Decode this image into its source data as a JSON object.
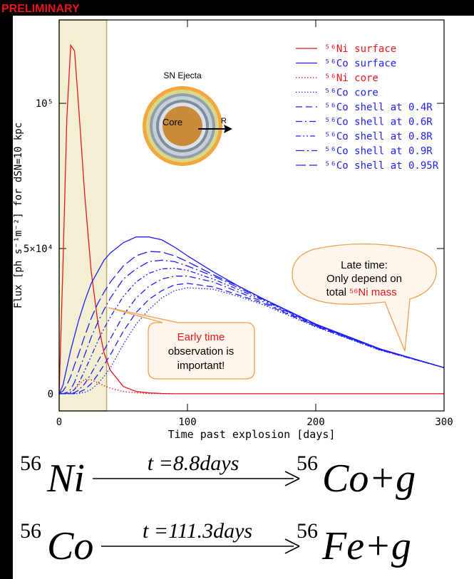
{
  "header": {
    "tag": "PRELIMINARY"
  },
  "chart_data": {
    "type": "line",
    "xlabel": "Time past explosion [days]",
    "ylabel": "Flux [ph s⁻¹m⁻²] for dSN=10 kpc",
    "xlim": [
      0,
      300
    ],
    "ylim": [
      -5900,
      128700
    ],
    "xticks": [
      0,
      100,
      200,
      300
    ],
    "yticks": [
      0,
      {
        "value": 50000,
        "label": "5×10⁴"
      },
      {
        "value": 100000,
        "label": "10⁵"
      }
    ],
    "legend": "top-right",
    "shaded_region": {
      "x": [
        0,
        37
      ],
      "color": "#f2efd3"
    },
    "x": [
      0,
      3,
      6,
      9,
      12,
      15,
      20,
      25,
      30,
      35,
      40,
      50,
      60,
      70,
      80,
      90,
      100,
      120,
      140,
      160,
      200,
      250,
      300
    ],
    "series": [
      {
        "name": "⁵⁶Ni surface",
        "color": "#e8161b",
        "dash": "solid",
        "values": [
          0,
          45000,
          95000,
          120000,
          118000,
          100000,
          68000,
          42000,
          25000,
          14000,
          8000,
          2500,
          800,
          300,
          100,
          0,
          0,
          0,
          0,
          0,
          0,
          0,
          0
        ]
      },
      {
        "name": "⁵⁶Co surface",
        "color": "#1f1fff",
        "dash": "solid",
        "values": [
          0,
          3000,
          9000,
          15000,
          20000,
          25000,
          32000,
          38000,
          42000,
          46000,
          48500,
          52000,
          54000,
          54000,
          53000,
          50500,
          47500,
          42000,
          37000,
          32500,
          24000,
          15500,
          9000
        ]
      },
      {
        "name": "⁵⁶Ni core",
        "color": "#e8161b",
        "dash": "dotted",
        "values": [
          0,
          0,
          200,
          600,
          1500,
          3000,
          5000,
          4800,
          3800,
          2800,
          1900,
          800,
          300,
          100,
          0,
          0,
          0,
          0,
          0,
          0,
          0,
          0,
          0
        ]
      },
      {
        "name": "⁵⁶Co core",
        "color": "#1f1fff",
        "dash": "dotted",
        "values": [
          0,
          0,
          0,
          0,
          0,
          100,
          500,
          1500,
          3500,
          6000,
          9000,
          17000,
          24000,
          29000,
          33000,
          35500,
          36500,
          36000,
          33500,
          30500,
          23000,
          15000,
          9000
        ]
      },
      {
        "name": "⁵⁶Co shell at 0.4R",
        "color": "#1f1fff",
        "dash": "dashed",
        "values": [
          0,
          0,
          0,
          0,
          100,
          400,
          1500,
          3500,
          6500,
          10000,
          13500,
          21500,
          28000,
          32500,
          35500,
          37500,
          38000,
          36800,
          34000,
          31000,
          23200,
          15100,
          9000
        ]
      },
      {
        "name": "⁵⁶Co shell at 0.6R",
        "color": "#1f1fff",
        "dash": "dash-dot",
        "values": [
          0,
          0,
          0,
          100,
          400,
          1200,
          3500,
          7000,
          11000,
          15000,
          19000,
          27000,
          33000,
          37000,
          39500,
          40500,
          40500,
          38500,
          35000,
          31500,
          23400,
          15200,
          9000
        ]
      },
      {
        "name": "⁵⁶Co shell at 0.8R",
        "color": "#1f1fff",
        "dash": "dash-dot-dot",
        "values": [
          0,
          0,
          100,
          500,
          1500,
          3500,
          8000,
          13000,
          18000,
          22500,
          26500,
          33500,
          38500,
          41500,
          43000,
          43200,
          42500,
          39500,
          35800,
          32000,
          23600,
          15300,
          9000
        ]
      },
      {
        "name": "⁵⁶Co shell at 0.9R",
        "color": "#1f1fff",
        "dash": "long-dash-dot",
        "values": [
          0,
          0,
          500,
          1500,
          4000,
          7500,
          13500,
          19500,
          24500,
          29000,
          33000,
          39500,
          43000,
          45500,
          46000,
          45500,
          44000,
          40500,
          36500,
          32300,
          23700,
          15300,
          9000
        ]
      },
      {
        "name": "⁵⁶Co shell at 0.95R",
        "color": "#1f1fff",
        "dash": "long-dash",
        "values": [
          0,
          1000,
          3000,
          6000,
          10000,
          13500,
          20000,
          26000,
          31000,
          35000,
          38500,
          44000,
          47500,
          49000,
          48800,
          47500,
          45500,
          41000,
          37000,
          32500,
          23800,
          15400,
          9000
        ]
      }
    ],
    "diagram": {
      "title": "SN Ejecta",
      "core": "Core",
      "radius": "R"
    },
    "callouts": {
      "early": [
        "Early time",
        "observation is",
        "important!"
      ],
      "late": [
        "Late time:",
        "Only depend on",
        "total",
        "⁵⁶Ni mass"
      ]
    }
  },
  "equations": [
    {
      "mass_in": "56",
      "in": "Ni",
      "over": "t =8.8days",
      "mass_out": "56",
      "out": "Co+g"
    },
    {
      "mass_in": "56",
      "in": "Co",
      "over": "t =111.3days",
      "mass_out": "56",
      "out": "Fe+g"
    }
  ]
}
